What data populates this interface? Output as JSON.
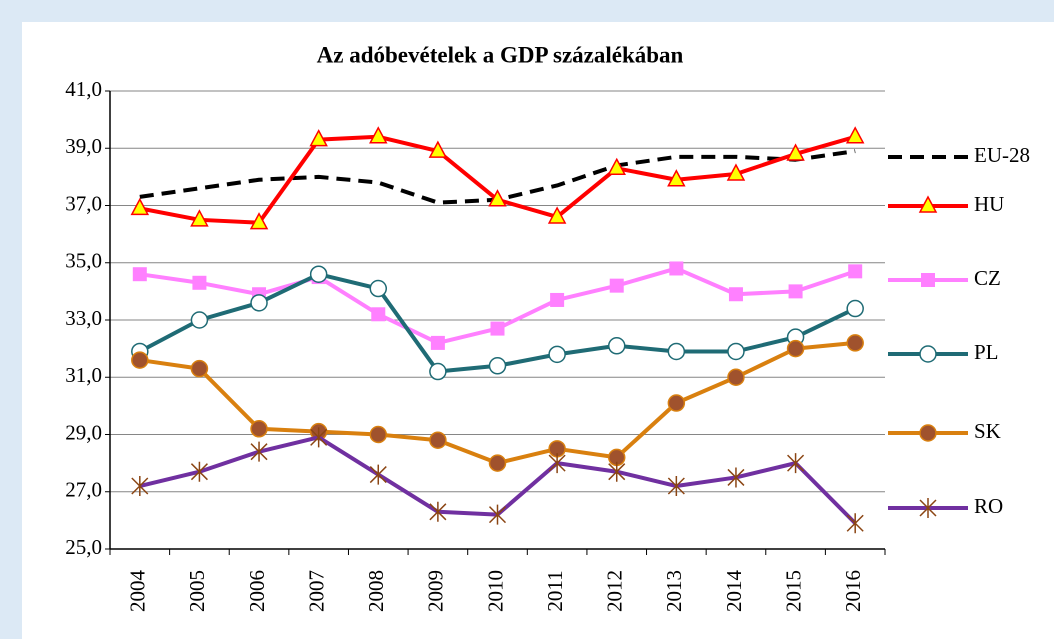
{
  "chart_data": {
    "type": "line",
    "title": "Az adóbevételek a GDP százalékában",
    "categories": [
      "2004",
      "2005",
      "2006",
      "2007",
      "2008",
      "2009",
      "2010",
      "2011",
      "2012",
      "2013",
      "2014",
      "2015",
      "2016"
    ],
    "ylim": [
      25,
      41
    ],
    "yticks": [
      {
        "value": 25,
        "label": "25,0"
      },
      {
        "value": 27,
        "label": "27,0"
      },
      {
        "value": 29,
        "label": "29,0"
      },
      {
        "value": 31,
        "label": "31,0"
      },
      {
        "value": 33,
        "label": "33,0"
      },
      {
        "value": 35,
        "label": "35,0"
      },
      {
        "value": 37,
        "label": "37,0"
      },
      {
        "value": 39,
        "label": "39,0"
      },
      {
        "value": 41,
        "label": "41,0"
      }
    ],
    "grid": true,
    "legend": "right",
    "series": [
      {
        "name": "EU-28",
        "color": "#000000",
        "dash": true,
        "marker": "none",
        "values": [
          37.3,
          37.6,
          37.9,
          38.0,
          37.8,
          37.1,
          37.2,
          37.7,
          38.4,
          38.7,
          38.7,
          38.6,
          38.9
        ]
      },
      {
        "name": "HU",
        "color": "#ff0000",
        "marker": "triangle",
        "marker_color": "#ffff00",
        "values": [
          36.9,
          36.5,
          36.4,
          39.3,
          39.4,
          38.9,
          37.2,
          36.6,
          38.3,
          37.9,
          38.1,
          38.8,
          39.4
        ]
      },
      {
        "name": "CZ",
        "color": "#ff80ff",
        "marker": "square",
        "marker_color": "#ff80ff",
        "values": [
          34.6,
          34.3,
          33.9,
          34.5,
          33.2,
          32.2,
          32.7,
          33.7,
          34.2,
          34.8,
          33.9,
          34.0,
          34.7
        ]
      },
      {
        "name": "PL",
        "color": "#1f6b75",
        "marker": "circle",
        "marker_color": "#ffffff",
        "values": [
          31.9,
          33.0,
          33.6,
          34.6,
          34.1,
          31.2,
          31.4,
          31.8,
          32.1,
          31.9,
          31.9,
          32.4,
          33.4
        ]
      },
      {
        "name": "SK",
        "color": "#d9800f",
        "marker": "circle",
        "marker_color": "#a0522d",
        "values": [
          31.6,
          31.3,
          29.2,
          29.1,
          29.0,
          28.8,
          28.0,
          28.5,
          28.2,
          30.1,
          31.0,
          32.0,
          32.2
        ]
      },
      {
        "name": "RO",
        "color": "#7030a0",
        "marker": "star",
        "marker_color": "#8b4513",
        "values": [
          27.2,
          27.7,
          28.4,
          28.9,
          27.6,
          26.3,
          26.2,
          28.0,
          27.7,
          27.2,
          27.5,
          28.0,
          25.9
        ]
      }
    ]
  }
}
